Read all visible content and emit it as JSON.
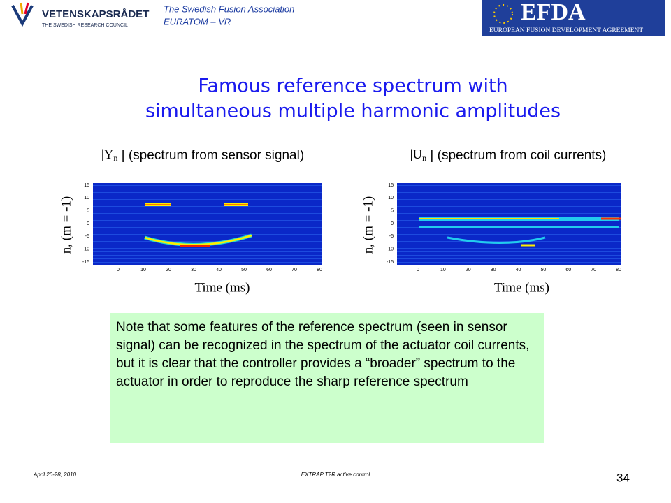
{
  "header": {
    "logo_left": "VETENSKAPSRÅDET",
    "logo_left_sub": "THE SWEDISH RESEARCH COUNCIL",
    "association": "The Swedish Fusion Association",
    "euratom": "EURATOM – VR",
    "logo_right": "EFDA",
    "logo_right_sub": "EUROPEAN FUSION DEVELOPMENT AGREEMENT"
  },
  "title": [
    "Famous reference spectrum with",
    "simultaneous multiple harmonic amplitudes"
  ],
  "panels": [
    {
      "caption_symbol": "|Y",
      "caption_sub": "n",
      "caption_text": " | (spectrum from sensor signal)",
      "ylabel": "n, (m = -1)",
      "xlabel": "Time (ms)",
      "yticks": [
        15,
        10,
        5,
        0,
        -5,
        -10,
        -15
      ],
      "xticks": [
        0,
        10,
        20,
        30,
        40,
        50,
        60,
        70,
        80
      ]
    },
    {
      "caption_symbol": "|U",
      "caption_sub": "n",
      "caption_text": " | (spectrum from coil currents)",
      "ylabel": "n, (m = -1)",
      "xlabel": "Time (ms)",
      "yticks": [
        15,
        10,
        5,
        0,
        -5,
        -10,
        -15
      ],
      "xticks": [
        0,
        10,
        20,
        30,
        40,
        50,
        60,
        70,
        80
      ]
    }
  ],
  "note": "Note that some features of the reference spectrum (seen in sensor signal) can be recognized in the spectrum of the actuator coil currents, but it is clear that the controller provides a “broader” spectrum to the actuator in order to reproduce the sharp reference spectrum",
  "footer": {
    "date": "April 26-28, 2010",
    "center": "EXTRAP T2R active control",
    "page": "34"
  }
}
